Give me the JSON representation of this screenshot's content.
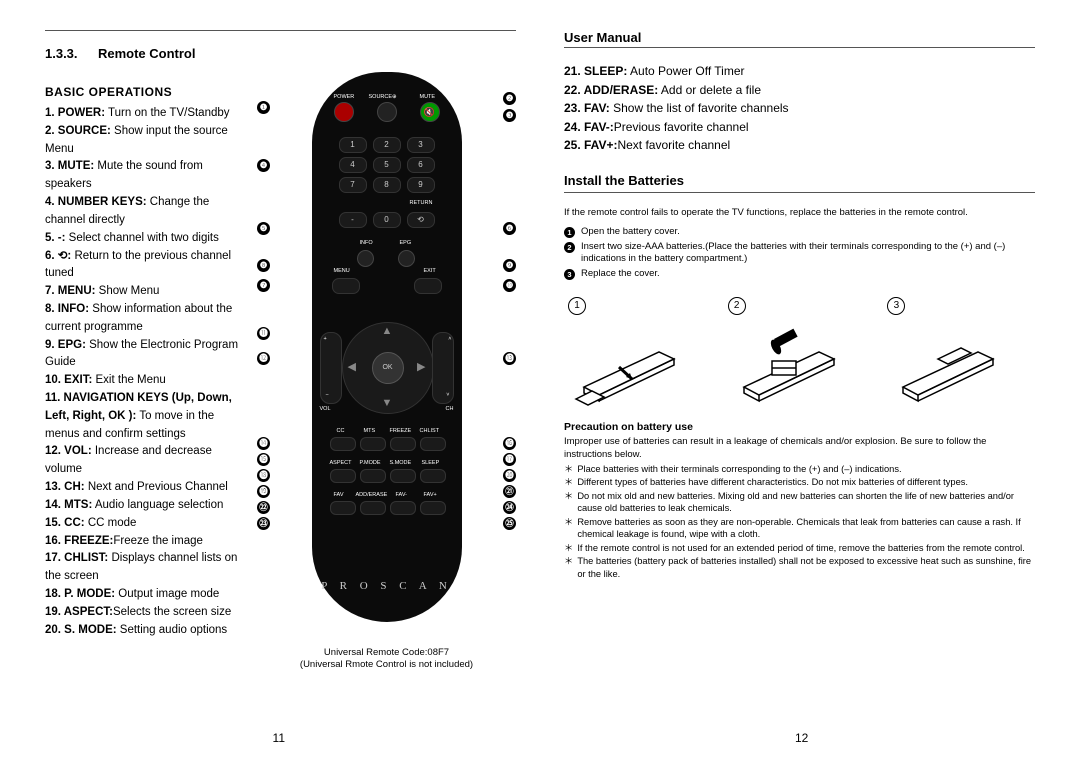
{
  "leftPage": {
    "sectionNumber": "1.3.3.",
    "sectionTitle": "Remote Control",
    "basicOpsHeading": "BASIC OPERATIONS",
    "ops": [
      {
        "n": "1.",
        "b": "POWER:",
        "t": " Turn on the TV/Standby"
      },
      {
        "n": "2.",
        "b": "SOURCE:",
        "t": " Show input the source Menu"
      },
      {
        "n": "3.",
        "b": "MUTE:",
        "t": " Mute the sound from speakers"
      },
      {
        "n": "4.",
        "b": "NUMBER KEYS:",
        "t": " Change the channel directly"
      },
      {
        "n": "5.",
        "b": "-:",
        "t": " Select channel with two digits"
      },
      {
        "n": "6.",
        "b": "⟲:",
        "t": " Return to the previous channel tuned"
      },
      {
        "n": "7.",
        "b": "MENU:",
        "t": " Show Menu"
      },
      {
        "n": "8.",
        "b": "INFO:",
        "t": " Show information about the current programme"
      },
      {
        "n": "9.",
        "b": "EPG:",
        "t": " Show the Electronic Program Guide"
      },
      {
        "n": "10.",
        "b": "EXIT:",
        "t": " Exit the Menu"
      },
      {
        "n": "11.",
        "b": "NAVIGATION KEYS (Up, Down, Left, Right, OK ):",
        "t": " To move in the menus and confirm settings"
      },
      {
        "n": "12.",
        "b": "VOL:",
        "t": " Increase and decrease volume"
      },
      {
        "n": "13.",
        "b": "CH:",
        "t": " Next and Previous Channel"
      },
      {
        "n": "14.",
        "b": "MTS:",
        "t": " Audio language selection"
      },
      {
        "n": "15.",
        "b": "CC:",
        "t": " CC mode"
      },
      {
        "n": "16.",
        "b": "FREEZE:",
        "t": "Freeze the image"
      },
      {
        "n": "17.",
        "b": "CHLIST:",
        "t": " Displays channel lists on the screen"
      },
      {
        "n": "18.",
        "b": "P. MODE:",
        "t": " Output image mode"
      },
      {
        "n": "19.",
        "b": "ASPECT:",
        "t": "Selects the screen size"
      },
      {
        "n": "20.",
        "b": "S. MODE:",
        "t": " Setting audio options"
      }
    ],
    "remoteCaption1": "Universal Remote Code:08F7",
    "remoteCaption2": "(Universal Rmote Control is not included)",
    "brand": "P R O S C A N",
    "pageNum": "11"
  },
  "rightPage": {
    "manualTitle": "User Manual",
    "opsCont": [
      {
        "n": "21.",
        "b": "SLEEP:",
        "t": " Auto Power Off Timer"
      },
      {
        "n": "22.",
        "b": "ADD/ERASE:",
        "t": " Add or delete a file"
      },
      {
        "n": "23.",
        "b": "FAV:",
        "t": " Show the list of favorite channels"
      },
      {
        "n": "24.",
        "b": "FAV-:",
        "t": "Previous favorite channel"
      },
      {
        "n": "25.",
        "b": "FAV+:",
        "t": "Next favorite channel"
      }
    ],
    "installTitle": "Install the Batteries",
    "installIntro": "If the remote control fails to operate the TV functions, replace the batteries in the remote control.",
    "steps": [
      "Open the battery cover.",
      "Insert two size-AAA batteries.(Place the batteries with their terminals corresponding to the (+) and (–) indications in the battery compartment.)",
      "Replace the cover."
    ],
    "precautTitle": "Precaution on battery use",
    "precautIntro": "Improper use of batteries can result in a leakage of chemicals and/or explosion. Be sure to follow the instructions below.",
    "precauts": [
      "Place batteries with their terminals corresponding to the (+) and (–) indications.",
      "Different types of batteries have different characteristics. Do not mix batteries of different types.",
      "Do not mix old and new batteries. Mixing old and new batteries can shorten the life of new batteries and/or cause old batteries to leak chemicals.",
      "Remove batteries as soon as they are non-operable. Chemicals that leak from batteries can cause a rash. If chemical leakage is found, wipe with a cloth.",
      "If the remote control is not used for an extended period of time, remove the batteries from the remote control.",
      "The batteries (battery pack of batteries installed) shall not be exposed to excessive heat such as sunshine, fire or the like."
    ],
    "pageNum": "12"
  }
}
